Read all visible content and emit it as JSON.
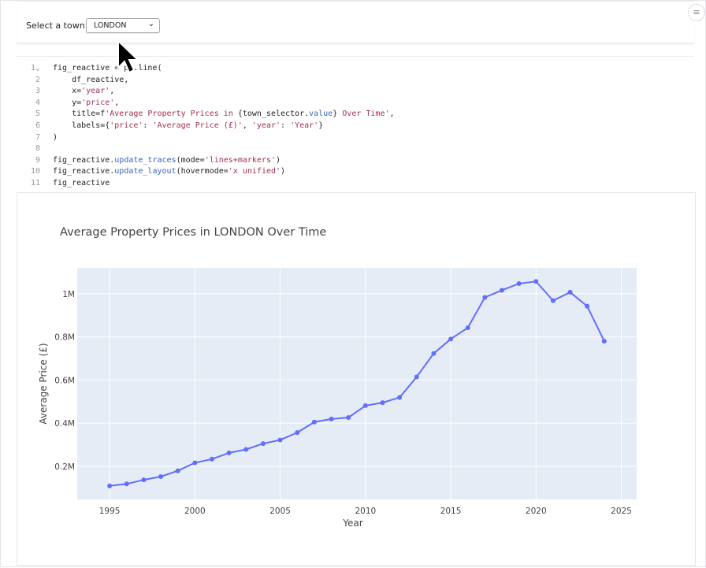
{
  "town_select": {
    "label": "Select a town:",
    "value": "LONDON"
  },
  "code_lines": [
    [
      {
        "t": "fig_reactive = px.line("
      }
    ],
    [
      {
        "t": "    df_reactive,"
      }
    ],
    [
      {
        "t": "    x="
      },
      {
        "t": "'year'",
        "c": "s"
      },
      {
        "t": ","
      }
    ],
    [
      {
        "t": "    y="
      },
      {
        "t": "'price'",
        "c": "s"
      },
      {
        "t": ","
      }
    ],
    [
      {
        "t": "    title=f"
      },
      {
        "t": "'Average Property Prices in ",
        "c": "s"
      },
      {
        "t": "{town_selector."
      },
      {
        "t": "value",
        "c": "m"
      },
      {
        "t": "}"
      },
      {
        "t": " Over Time'",
        "c": "s"
      },
      {
        "t": ","
      }
    ],
    [
      {
        "t": "    labels={"
      },
      {
        "t": "'price'",
        "c": "s"
      },
      {
        "t": ": "
      },
      {
        "t": "'Average Price (£)'",
        "c": "s"
      },
      {
        "t": ", "
      },
      {
        "t": "'year'",
        "c": "s"
      },
      {
        "t": ": "
      },
      {
        "t": "'Year'",
        "c": "s"
      },
      {
        "t": "}"
      }
    ],
    [
      {
        "t": ")"
      }
    ],
    [
      {
        "t": ""
      }
    ],
    [
      {
        "t": "fig_reactive."
      },
      {
        "t": "update_traces",
        "c": "m"
      },
      {
        "t": "(mode="
      },
      {
        "t": "'lines+markers'",
        "c": "s"
      },
      {
        "t": ")"
      }
    ],
    [
      {
        "t": "fig_reactive."
      },
      {
        "t": "update_layout",
        "c": "m"
      },
      {
        "t": "(hovermode="
      },
      {
        "t": "'x unified'",
        "c": "s"
      },
      {
        "t": ")"
      }
    ],
    [
      {
        "t": "fig_reactive"
      }
    ]
  ],
  "chart_data": {
    "type": "line",
    "title": "Average Property Prices in LONDON Over Time",
    "xlabel": "Year",
    "ylabel": "Average Price (£)",
    "x": [
      1995,
      1996,
      1997,
      1998,
      1999,
      2000,
      2001,
      2002,
      2003,
      2004,
      2005,
      2006,
      2007,
      2008,
      2009,
      2010,
      2011,
      2012,
      2013,
      2014,
      2015,
      2016,
      2017,
      2018,
      2019,
      2020,
      2021,
      2022,
      2023,
      2024
    ],
    "y": [
      109000,
      118000,
      137000,
      152000,
      179000,
      216000,
      233000,
      262000,
      278000,
      305000,
      322000,
      356000,
      405000,
      419000,
      426000,
      481000,
      495000,
      519000,
      614000,
      723000,
      790000,
      842000,
      983000,
      1016000,
      1047000,
      1057000,
      968000,
      1007000,
      942000,
      780000
    ],
    "xlim": [
      1993.1,
      2025.9
    ],
    "ylim": [
      46000,
      1120000
    ],
    "xticks": [
      1995,
      2000,
      2005,
      2010,
      2015,
      2020,
      2025
    ],
    "yticks": [
      {
        "v": 200000,
        "label": "0.2M"
      },
      {
        "v": 400000,
        "label": "0.4M"
      },
      {
        "v": 600000,
        "label": "0.6M"
      },
      {
        "v": 800000,
        "label": "0.8M"
      },
      {
        "v": 1000000,
        "label": "1M"
      }
    ],
    "grid": true,
    "mode": "lines+markers",
    "line_color": "#636efa",
    "plot_bg": "#e5ecf6"
  }
}
